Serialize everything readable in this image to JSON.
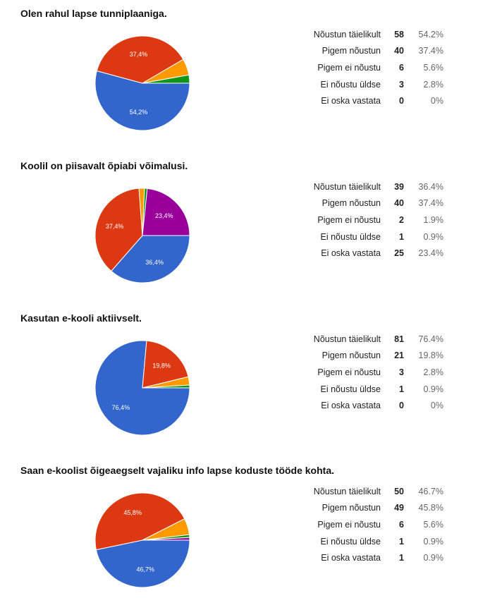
{
  "chart_data": [
    {
      "type": "pie",
      "title": "Olen rahul lapse tunniplaaniga.",
      "categories": [
        "Nõustun täielikult",
        "Pigem nõustun",
        "Pigem ei nõustu",
        "Ei nõustu üldse",
        "Ei oska vastata"
      ],
      "values": [
        58,
        40,
        6,
        3,
        0
      ],
      "percent_labels": [
        "54.2%",
        "37.4%",
        "5.6%",
        "2.8%",
        "0%"
      ],
      "slice_labels": [
        "54,2%",
        "37,4%",
        "",
        "",
        ""
      ],
      "colors": [
        "#3366cc",
        "#dc3912",
        "#ff9900",
        "#109618",
        "#990099"
      ]
    },
    {
      "type": "pie",
      "title": "Koolil on piisavalt õpiabi võimalusi.",
      "categories": [
        "Nõustun täielikult",
        "Pigem nõustun",
        "Pigem ei nõustu",
        "Ei nõustu üldse",
        "Ei oska vastata"
      ],
      "values": [
        39,
        40,
        2,
        1,
        25
      ],
      "percent_labels": [
        "36.4%",
        "37.4%",
        "1.9%",
        "0.9%",
        "23.4%"
      ],
      "slice_labels": [
        "36,4%",
        "37,4%",
        "",
        "",
        "23,4%"
      ],
      "colors": [
        "#3366cc",
        "#dc3912",
        "#ff9900",
        "#109618",
        "#990099"
      ]
    },
    {
      "type": "pie",
      "title": "Kasutan e-kooli aktiivselt.",
      "categories": [
        "Nõustun täielikult",
        "Pigem nõustun",
        "Pigem ei nõustu",
        "Ei nõustu üldse",
        "Ei oska vastata"
      ],
      "values": [
        81,
        21,
        3,
        1,
        0
      ],
      "percent_labels": [
        "76.4%",
        "19.8%",
        "2.8%",
        "0.9%",
        "0%"
      ],
      "slice_labels": [
        "76,4%",
        "19,8%",
        "",
        "",
        ""
      ],
      "colors": [
        "#3366cc",
        "#dc3912",
        "#ff9900",
        "#109618",
        "#990099"
      ]
    },
    {
      "type": "pie",
      "title": "Saan e-koolist õigeaegselt vajaliku info lapse koduste tööde kohta.",
      "categories": [
        "Nõustun täielikult",
        "Pigem nõustun",
        "Pigem ei nõustu",
        "Ei nõustu üldse",
        "Ei oska vastata"
      ],
      "values": [
        50,
        49,
        6,
        1,
        1
      ],
      "percent_labels": [
        "46.7%",
        "45.8%",
        "5.6%",
        "0.9%",
        "0.9%"
      ],
      "slice_labels": [
        "46,7%",
        "45,8%",
        "",
        "",
        ""
      ],
      "colors": [
        "#3366cc",
        "#dc3912",
        "#ff9900",
        "#109618",
        "#990099"
      ]
    }
  ]
}
